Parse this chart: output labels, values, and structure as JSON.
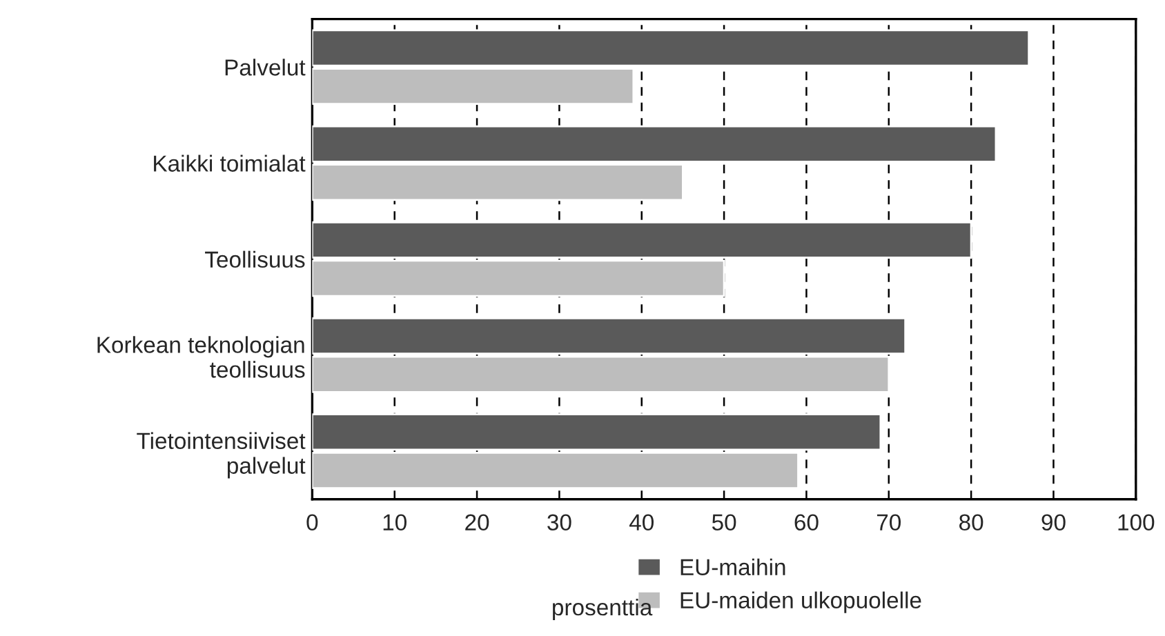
{
  "chart_data": {
    "type": "bar",
    "orientation": "horizontal",
    "categories": [
      "Palvelut",
      "Kaikki toimialat",
      "Teollisuus",
      "Korkean teknologian\nteollisuus",
      "Tietointensiiviset\npalvelut"
    ],
    "series": [
      {
        "name": "EU-maihin",
        "color": "#5a5a5a",
        "values": [
          87,
          83,
          80,
          72,
          69
        ]
      },
      {
        "name": "EU-maiden ulkopuolelle",
        "color": "#bdbdbd",
        "values": [
          39,
          45,
          50,
          70,
          59
        ]
      }
    ],
    "xlabel": "prosenttia",
    "xlim": [
      0,
      100
    ],
    "xticks": [
      0,
      10,
      20,
      30,
      40,
      50,
      60,
      70,
      80,
      90,
      100
    ],
    "grid": "x",
    "legend": "bottom"
  }
}
